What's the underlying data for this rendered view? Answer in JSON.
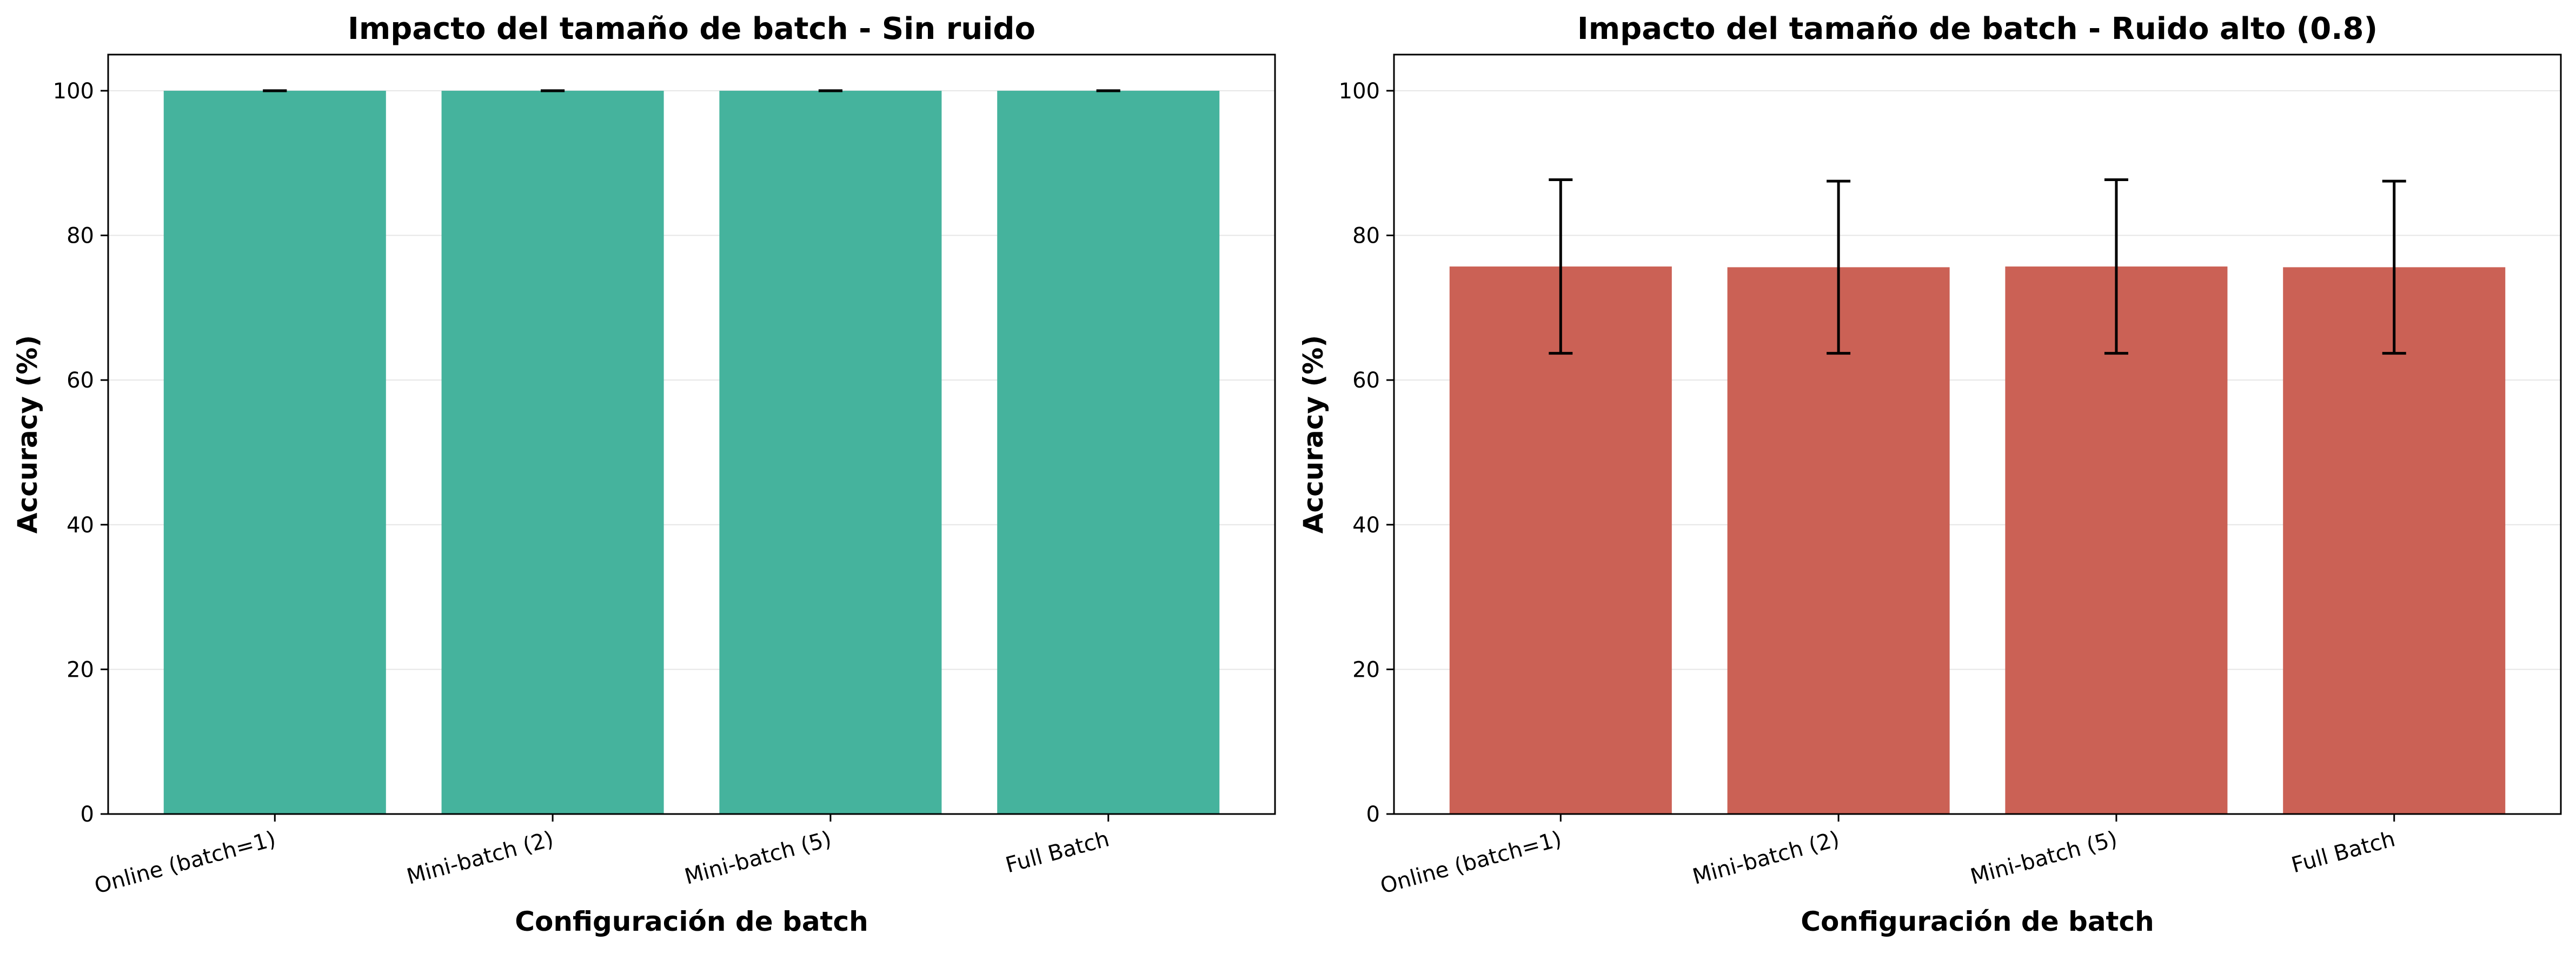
{
  "chart_data": [
    {
      "type": "bar",
      "title": "Impacto del tamaño de batch - Sin ruido",
      "xlabel": "Configuración de batch",
      "ylabel": "Accuracy (%)",
      "categories": [
        "Online (batch=1)",
        "Mini-batch (2)",
        "Mini-batch (5)",
        "Full Batch"
      ],
      "values": [
        100,
        100,
        100,
        100
      ],
      "errors": [
        0,
        0,
        0,
        0
      ],
      "ylim": [
        0,
        105
      ],
      "yticks": [
        0,
        20,
        40,
        60,
        80,
        100
      ],
      "grid": true,
      "color": "#45b39d"
    },
    {
      "type": "bar",
      "title": "Impacto del tamaño de batch - Ruido alto (0.8)",
      "xlabel": "Configuración de batch",
      "ylabel": "Accuracy (%)",
      "categories": [
        "Online (batch=1)",
        "Mini-batch (2)",
        "Mini-batch (5)",
        "Full Batch"
      ],
      "values": [
        75.7,
        75.6,
        75.7,
        75.6
      ],
      "errors": [
        12.0,
        11.9,
        12.0,
        11.9
      ],
      "ylim": [
        0,
        105
      ],
      "yticks": [
        0,
        20,
        40,
        60,
        80,
        100
      ],
      "grid": true,
      "color": "#cb6155"
    }
  ]
}
